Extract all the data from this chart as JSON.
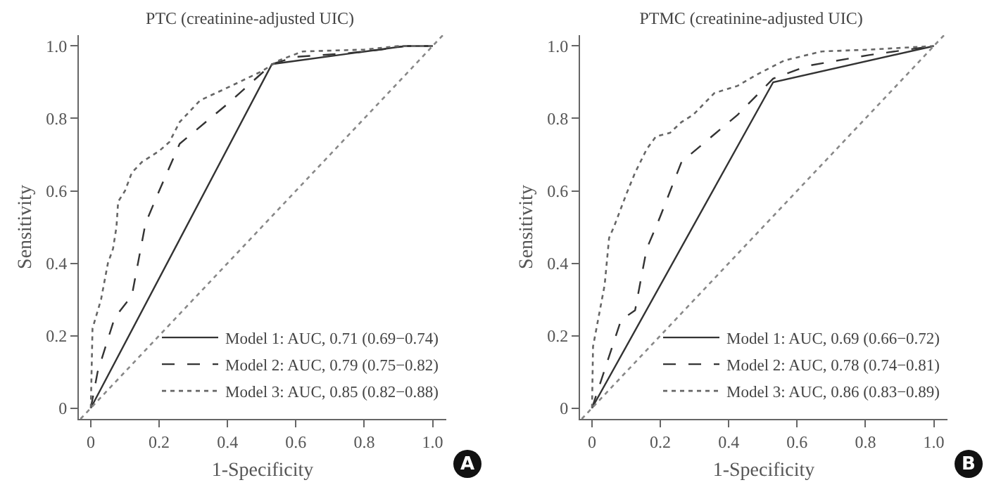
{
  "chart_data": [
    {
      "type": "line",
      "title": "PTC (creatinine-adjusted UIC)",
      "xlabel": "1-Specificity",
      "ylabel": "Sensitivity",
      "annotations": [
        "A"
      ],
      "xlim": [
        -0.035,
        1.04
      ],
      "ylim": [
        -0.03,
        1.03
      ],
      "xticks": [
        0,
        0.2,
        0.4,
        0.6,
        0.8,
        {
          "value": 1,
          "label": "1.0"
        }
      ],
      "yticks": [
        0,
        0.2,
        0.4,
        0.6,
        0.8,
        {
          "value": 1,
          "label": "1.0"
        }
      ],
      "grid": false,
      "legend": "bottom right",
      "marker": "none",
      "series": [
        {
          "name": "Model 1: AUC, 0.71 (0.69−0.74)",
          "color": "#333333",
          "line_style": "solid",
          "x": [
            0,
            0.53,
            0.92,
            1
          ],
          "values": [
            0,
            0.95,
            1,
            1
          ]
        },
        {
          "name": "Model 2: AUC, 0.79 (0.75−0.82)",
          "color": "#333333",
          "line_style": "dashed",
          "x": [
            0,
            0.02,
            0.07,
            0.12,
            0.16,
            0.2,
            0.26,
            0.4,
            0.53,
            0.6,
            0.75,
            0.85,
            0.92,
            1
          ],
          "values": [
            0,
            0.1,
            0.25,
            0.31,
            0.51,
            0.6,
            0.73,
            0.84,
            0.95,
            0.97,
            0.98,
            0.99,
            1,
            1
          ]
        },
        {
          "name": "Model 3: AUC, 0.85 (0.82−0.88)",
          "color": "#666666",
          "line_style": "dotted",
          "x": [
            0,
            0.005,
            0.03,
            0.05,
            0.065,
            0.075,
            0.08,
            0.1,
            0.12,
            0.15,
            0.2,
            0.23,
            0.26,
            0.32,
            0.4,
            0.5,
            0.55,
            0.62,
            0.8,
            0.9,
            1
          ],
          "values": [
            0,
            0.22,
            0.3,
            0.4,
            0.44,
            0.5,
            0.57,
            0.6,
            0.65,
            0.68,
            0.71,
            0.735,
            0.79,
            0.85,
            0.885,
            0.93,
            0.96,
            0.985,
            0.99,
            1,
            1
          ]
        },
        {
          "color": "#888888",
          "line_style": "dotted",
          "x": [
            -0.03,
            1.03
          ],
          "values": [
            -0.03,
            1.03
          ]
        }
      ]
    },
    {
      "type": "line",
      "title": "PTMC (creatinine-adjusted UIC)",
      "xlabel": "1-Specificity",
      "ylabel": "Sensitivity",
      "annotations": [
        "B"
      ],
      "xlim": [
        -0.035,
        1.04
      ],
      "ylim": [
        -0.03,
        1.03
      ],
      "xticks": [
        0,
        0.2,
        0.4,
        0.6,
        0.8,
        {
          "value": 1,
          "label": "1.0"
        }
      ],
      "yticks": [
        0,
        0.2,
        0.4,
        0.6,
        0.8,
        {
          "value": 1,
          "label": "1.0"
        }
      ],
      "grid": false,
      "legend": "bottom right",
      "marker": "none",
      "series": [
        {
          "name": "Model 1: AUC, 0.69 (0.66−0.72)",
          "color": "#333333",
          "line_style": "solid",
          "x": [
            0,
            0.53,
            1
          ],
          "values": [
            0,
            0.9,
            1
          ]
        },
        {
          "name": "Model 2: AUC, 0.78 (0.74−0.81)",
          "color": "#333333",
          "line_style": "dashed",
          "x": [
            0,
            0.085,
            0.126,
            0.16,
            0.187,
            0.2,
            0.262,
            0.426,
            0.53,
            0.63,
            0.81,
            1
          ],
          "values": [
            0,
            0.243,
            0.27,
            0.44,
            0.5,
            0.53,
            0.68,
            0.81,
            0.91,
            0.945,
            0.975,
            1
          ]
        },
        {
          "name": "Model 3: AUC, 0.86 (0.83−0.89)",
          "color": "#666666",
          "line_style": "dotted",
          "x": [
            0,
            0.003,
            0.037,
            0.05,
            0.064,
            0.1,
            0.126,
            0.16,
            0.187,
            0.228,
            0.262,
            0.296,
            0.358,
            0.426,
            0.48,
            0.563,
            0.672,
            0.81,
            1
          ],
          "values": [
            0,
            0.17,
            0.34,
            0.47,
            0.5,
            0.59,
            0.65,
            0.715,
            0.75,
            0.76,
            0.79,
            0.81,
            0.87,
            0.89,
            0.92,
            0.96,
            0.985,
            0.99,
            1
          ]
        },
        {
          "color": "#888888",
          "line_style": "dotted",
          "x": [
            -0.03,
            1.03
          ],
          "values": [
            -0.03,
            1.03
          ]
        }
      ]
    }
  ]
}
